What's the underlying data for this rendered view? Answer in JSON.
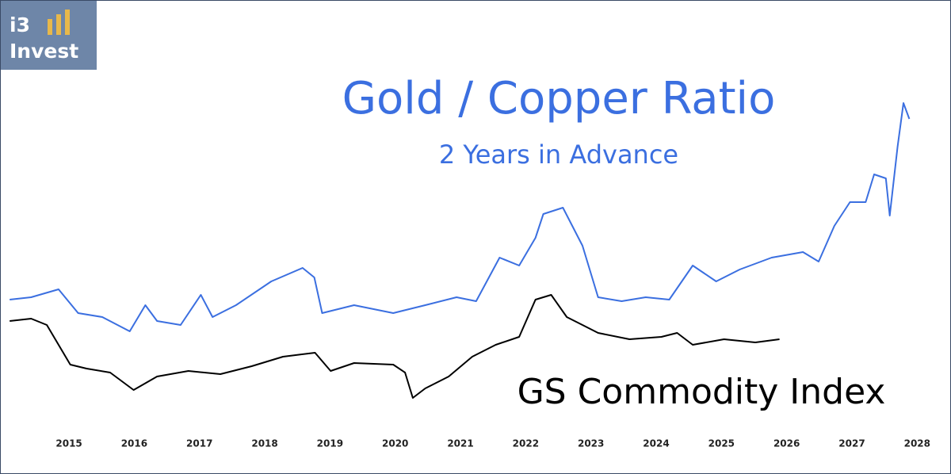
{
  "logo": {
    "line1": "i3",
    "line2": "Invest"
  },
  "chart_data": {
    "type": "line",
    "title": "Gold / Copper Ratio",
    "subtitle": "2 Years in Advance",
    "series": [
      {
        "color": "#3b6fe0",
        "x": [
          2014.09,
          2014.42,
          2014.84,
          2015.14,
          2015.51,
          2015.93,
          2016.17,
          2016.35,
          2016.71,
          2017.02,
          2017.2,
          2017.56,
          2018.1,
          2018.58,
          2018.76,
          2018.88,
          2019.37,
          2019.97,
          2020.46,
          2020.94,
          2021.24,
          2021.6,
          2021.9,
          2022.15,
          2022.27,
          2022.57,
          2022.87,
          2023.11,
          2023.47,
          2023.84,
          2024.2,
          2024.56,
          2024.92,
          2025.28,
          2025.77,
          2026.25,
          2026.49,
          2026.73,
          2026.97,
          2027.21,
          2027.34,
          2027.52,
          2027.58,
          2027.7,
          2027.79,
          2027.88
        ],
        "values": [
          162,
          165,
          175,
          145,
          140,
          122,
          155,
          135,
          130,
          168,
          140,
          155,
          185,
          202,
          190,
          145,
          155,
          145,
          155,
          165,
          160,
          215,
          205,
          240,
          270,
          278,
          230,
          165,
          160,
          165,
          162,
          205,
          185,
          200,
          215,
          222,
          210,
          255,
          285,
          285,
          320,
          315,
          268,
          355,
          410,
          390
        ]
      },
      {
        "name": "GS Commodity Index",
        "color": "#000000",
        "x": [
          2014.09,
          2014.42,
          2014.66,
          2015.02,
          2015.27,
          2015.63,
          2015.99,
          2016.35,
          2016.83,
          2017.32,
          2017.8,
          2018.28,
          2018.77,
          2019.01,
          2019.37,
          2019.97,
          2020.15,
          2020.27,
          2020.46,
          2020.82,
          2021.18,
          2021.54,
          2021.9,
          2022.15,
          2022.39,
          2022.63,
          2022.87,
          2023.11,
          2023.59,
          2024.08,
          2024.32,
          2024.56,
          2025.04,
          2025.52,
          2025.89
        ],
        "values": [
          135,
          138,
          130,
          80,
          75,
          70,
          48,
          65,
          72,
          68,
          78,
          90,
          95,
          72,
          82,
          80,
          70,
          38,
          50,
          65,
          90,
          105,
          115,
          162,
          168,
          140,
          130,
          120,
          112,
          115,
          120,
          105,
          112,
          108,
          112
        ]
      }
    ],
    "xlim": [
      2014.1,
      2028.3
    ],
    "xticks": [
      2015,
      2016,
      2017,
      2018,
      2019,
      2020,
      2021,
      2022,
      2023,
      2024,
      2025,
      2026,
      2027,
      2028
    ],
    "ylim": [
      0,
      500
    ]
  }
}
